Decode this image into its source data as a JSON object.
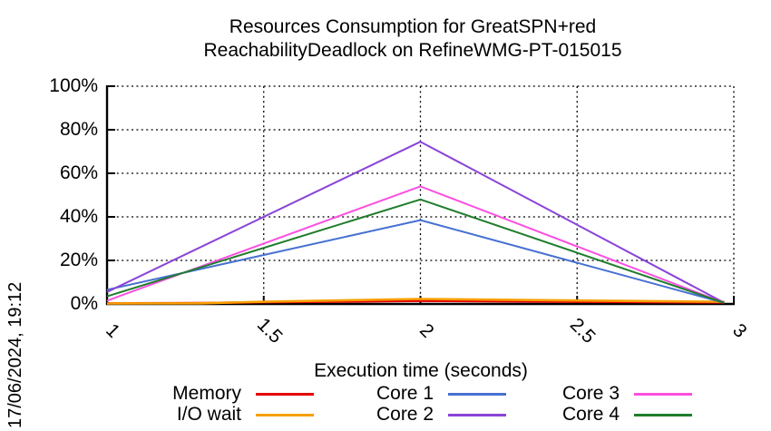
{
  "timestamp": "17/06/2024, 19:12",
  "chart_data": {
    "type": "line",
    "title_lines": [
      "Resources Consumption for GreatSPN+red",
      "ReachabilityDeadlock on RefineWMG-PT-015015"
    ],
    "xlabel": "Execution time (seconds)",
    "ylabel": "",
    "xlim": [
      1,
      3
    ],
    "ylim": [
      0,
      100
    ],
    "x_ticks": [
      1,
      1.5,
      2,
      2.5,
      3
    ],
    "x_tick_labels": [
      "1",
      "1.5",
      "2",
      "2.5",
      "3"
    ],
    "y_ticks": [
      0,
      20,
      40,
      60,
      80,
      100
    ],
    "y_tick_labels": [
      "0%",
      "20%",
      "40%",
      "60%",
      "80%",
      "100%"
    ],
    "grid": true,
    "legend_position": "bottom",
    "series": [
      {
        "name": "Memory",
        "color": "#e60000",
        "points": [
          [
            1,
            0.3
          ],
          [
            1.3,
            0.4
          ],
          [
            1.5,
            0.8
          ],
          [
            2,
            1.4
          ],
          [
            2.5,
            1.0
          ],
          [
            2.97,
            0.7
          ]
        ]
      },
      {
        "name": "I/O wait",
        "color": "#f79f00",
        "points": [
          [
            1,
            0.2
          ],
          [
            1.3,
            0.3
          ],
          [
            1.5,
            1.0
          ],
          [
            2,
            2.3
          ],
          [
            2.5,
            1.6
          ],
          [
            2.97,
            1.0
          ]
        ]
      },
      {
        "name": "Core 1",
        "color": "#4671d2",
        "points": [
          [
            1,
            6.5
          ],
          [
            2,
            38.5
          ],
          [
            2.97,
            0.5
          ]
        ]
      },
      {
        "name": "Core 2",
        "color": "#8a44d8",
        "points": [
          [
            1,
            5.5
          ],
          [
            2,
            74.5
          ],
          [
            2.97,
            0.5
          ]
        ]
      },
      {
        "name": "Core 3",
        "color": "#fb4fe1",
        "points": [
          [
            1,
            1.5
          ],
          [
            2,
            54.0
          ],
          [
            2.97,
            0.5
          ]
        ]
      },
      {
        "name": "Core 4",
        "color": "#1f7d2c",
        "points": [
          [
            1,
            3.5
          ],
          [
            2,
            48.0
          ],
          [
            2.97,
            0.5
          ]
        ]
      }
    ]
  }
}
